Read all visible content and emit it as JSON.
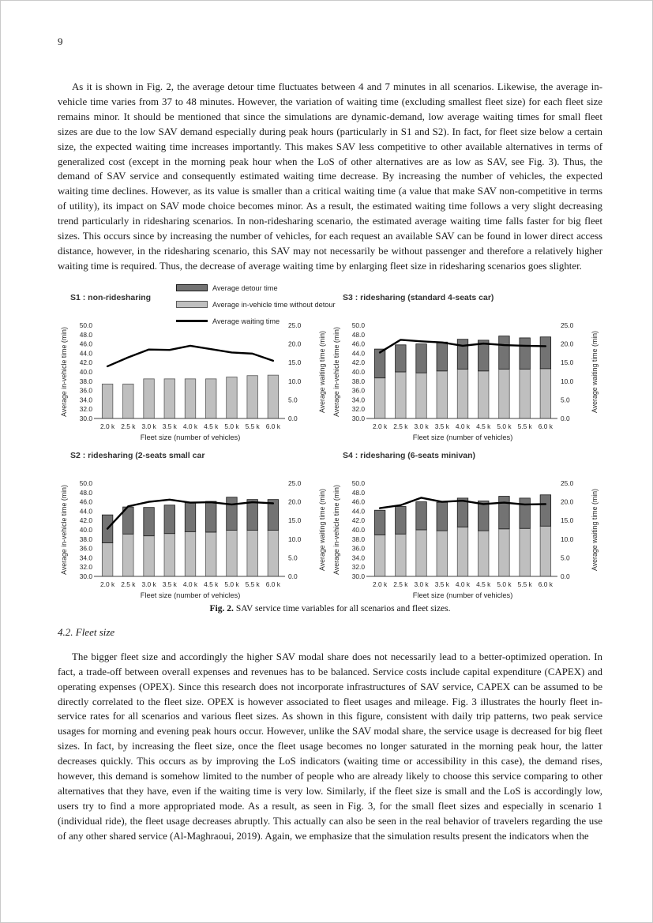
{
  "page": {
    "number": "9"
  },
  "paragraph1": "As it is shown in Fig. 2, the average detour time fluctuates between 4 and 7 minutes in all scenarios. Likewise, the average in-vehicle time varies from 37 to 48 minutes. However, the variation of waiting time (excluding smallest fleet size) for each fleet size remains minor. It should be mentioned that since the simulations are dynamic-demand, low average waiting times for small fleet sizes are due to the low SAV demand especially during peak hours (particularly in S1 and S2). In fact, for fleet size below a certain size, the expected waiting time increases importantly. This makes SAV less competitive to other available alternatives in terms of generalized cost (except in the morning peak hour when the LoS of other alternatives are as low as SAV, see Fig. 3). Thus, the demand of SAV service and consequently estimated waiting time decrease. By increasing the number of vehicles, the expected waiting time declines. However, as its value is smaller than a critical waiting time (a value that make SAV non-competitive in terms of utility), its impact on SAV mode choice becomes minor. As a result, the estimated waiting time follows a very slight decreasing trend particularly in ridesharing scenarios. In non-ridesharing scenario, the estimated average waiting time falls faster for big fleet sizes. This occurs since by increasing the number of vehicles, for each request an available SAV can be found in lower direct access distance, however, in the ridesharing scenario, this SAV may not necessarily be without passenger and therefore a relatively higher waiting time is required. Thus, the decrease of average waiting time by enlarging fleet size in ridesharing scenarios goes slighter.",
  "figure": {
    "legend": [
      {
        "swatch": "bar-dark",
        "label": "Average detour time"
      },
      {
        "swatch": "bar-light",
        "label": "Average in-vehicle time without detour"
      },
      {
        "swatch": "line",
        "label": "Average waiting time"
      }
    ],
    "caption_label": "Fig. 2.",
    "caption_text": "SAV service time variables for all scenarios and fleet sizes."
  },
  "chart_data": {
    "type": "bar",
    "subtype": "stacked-bar-with-line",
    "shared": {
      "categories": [
        "2.0 k",
        "2.5 k",
        "3.0 k",
        "3.5 k",
        "4.0 k",
        "4.5 k",
        "5.0 k",
        "5.5 k",
        "6.0 k"
      ],
      "xlabel": "Fleet size (number of vehicles)",
      "ylabel_left": "Average in-vehicle time (min)",
      "ylabel_right": "Average waiting time (min)",
      "ylim_left": [
        30.0,
        50.0
      ],
      "ytick_step_left": 2.0,
      "ylim_right": [
        0.0,
        25.0
      ],
      "ytick_step_right": 5.0,
      "grid": false,
      "legend_position": "top-center",
      "colors": {
        "bar_light": "#bfbfbf",
        "bar_dark": "#737373",
        "line": "#000000"
      }
    },
    "charts": [
      {
        "id": "s1",
        "position": "top-left",
        "title": "S1 : non-ridesharing",
        "series": [
          {
            "name": "Average in-vehicle time without detour",
            "axis": "left",
            "values": [
              37.4,
              37.4,
              38.5,
              38.5,
              38.5,
              38.5,
              38.9,
              39.2,
              39.3
            ]
          },
          {
            "name": "Average detour time",
            "axis": "left",
            "values": [
              0,
              0,
              0,
              0,
              0,
              0,
              0,
              0,
              0
            ]
          },
          {
            "name": "Average waiting time",
            "axis": "right",
            "values": [
              14.0,
              16.4,
              18.5,
              18.4,
              19.5,
              18.6,
              17.7,
              17.4,
              15.5
            ]
          }
        ]
      },
      {
        "id": "s3",
        "position": "top-right",
        "title": "S3 : ridesharing (standard 4-seats car)",
        "series": [
          {
            "name": "Average in-vehicle time without detour",
            "axis": "left",
            "values": [
              38.7,
              40.0,
              39.8,
              40.2,
              40.6,
              40.2,
              40.6,
              40.6,
              40.7
            ]
          },
          {
            "name": "Average detour time",
            "axis": "left",
            "values": [
              6.2,
              5.8,
              6.2,
              6.2,
              6.4,
              6.6,
              7.1,
              6.7,
              6.8
            ]
          },
          {
            "name": "Average waiting time",
            "axis": "right",
            "values": [
              17.7,
              21.1,
              20.7,
              20.4,
              19.5,
              20.1,
              19.7,
              19.5,
              19.4
            ]
          }
        ]
      },
      {
        "id": "s2",
        "position": "bottom-left",
        "title": "S2 : ridesharing (2-seats small car",
        "series": [
          {
            "name": "Average in-vehicle time without detour",
            "axis": "left",
            "values": [
              37.2,
              39.1,
              38.7,
              39.2,
              39.6,
              39.5,
              39.9,
              39.9,
              39.9
            ]
          },
          {
            "name": "Average detour time",
            "axis": "left",
            "values": [
              6.0,
              5.8,
              6.1,
              6.1,
              6.2,
              6.6,
              7.1,
              6.6,
              6.6
            ]
          },
          {
            "name": "Average waiting time",
            "axis": "right",
            "values": [
              12.8,
              18.8,
              20.0,
              20.6,
              19.8,
              19.9,
              19.3,
              19.9,
              19.6
            ]
          }
        ]
      },
      {
        "id": "s4",
        "position": "bottom-right",
        "title": "S4 : ridesharing (6-seats minivan)",
        "series": [
          {
            "name": "Average in-vehicle time without detour",
            "axis": "left",
            "values": [
              38.9,
              39.1,
              40.0,
              39.8,
              40.6,
              39.8,
              40.2,
              40.3,
              40.8
            ]
          },
          {
            "name": "Average detour time",
            "axis": "left",
            "values": [
              5.3,
              5.9,
              6.0,
              6.1,
              6.2,
              6.4,
              7.0,
              6.5,
              6.7
            ]
          },
          {
            "name": "Average waiting time",
            "axis": "right",
            "values": [
              18.3,
              19.1,
              21.1,
              20.0,
              20.3,
              19.4,
              19.8,
              19.3,
              19.4
            ]
          }
        ]
      }
    ]
  },
  "section_heading": "4.2. Fleet size",
  "paragraph2": "The bigger fleet size and accordingly the higher SAV modal share does not necessarily lead to a better-optimized operation. In fact, a trade-off between overall expenses and revenues has to be balanced. Service costs include capital expenditure (CAPEX) and operating expenses (OPEX). Since this research does not incorporate infrastructures of SAV service, CAPEX can be assumed to be directly correlated to the fleet size. OPEX is however associated to fleet usages and mileage. Fig. 3 illustrates the hourly fleet in-service rates for all scenarios and various fleet sizes. As shown in this figure, consistent with daily trip patterns, two peak service usages for morning and evening peak hours occur. However, unlike the SAV modal share, the service usage is decreased for big fleet sizes. In fact, by increasing the fleet size, once the fleet usage becomes no longer saturated in the morning peak hour, the latter decreases quickly. This occurs as by improving the LoS indicators (waiting time or accessibility in this case), the demand rises, however, this demand is somehow limited to the number of people who are already likely to choose this service comparing to other alternatives that they have, even if the waiting time is very low. Similarly, if the fleet size is small and the LoS is accordingly low, users try to find a more appropriated mode. As a result, as seen in Fig. 3, for the small fleet sizes and especially in scenario 1 (individual ride), the fleet usage decreases abruptly. This actually can also be seen in the real behavior of travelers regarding the use of any other shared service (Al-Maghraoui, 2019). Again, we emphasize that the simulation results present the indicators when the"
}
